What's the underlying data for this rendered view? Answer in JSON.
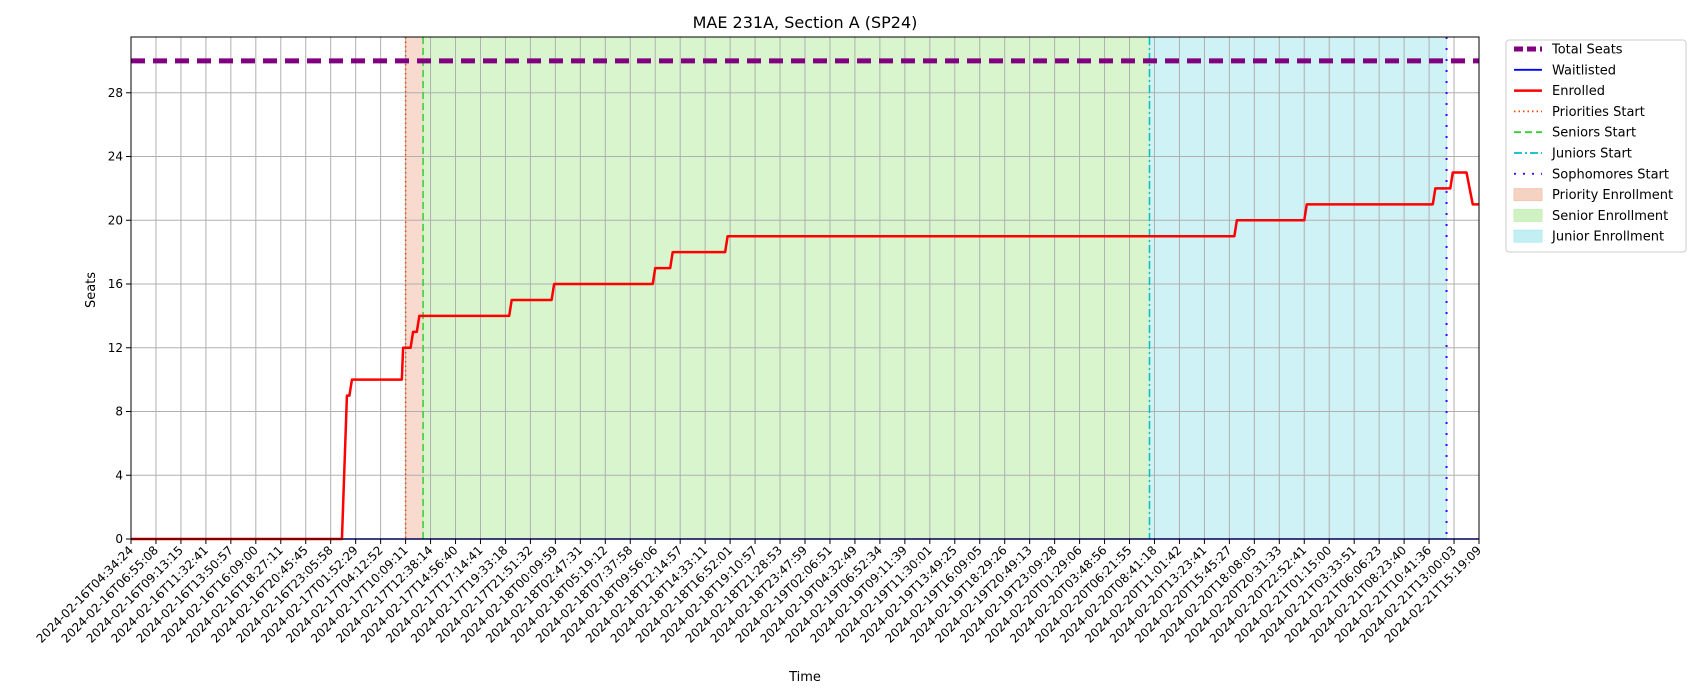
{
  "chart_data": {
    "type": "line",
    "title": "MAE 231A, Section A (SP24)",
    "xlabel": "Time",
    "ylabel": "Seats",
    "ylim": [
      0,
      31.5
    ],
    "yticks": [
      0,
      4,
      8,
      12,
      16,
      20,
      24,
      28
    ],
    "grid": true,
    "legend_position": "outside-top-right",
    "x_tick_labels": [
      "2024-02-16T04:34:24",
      "2024-02-16T06:55:08",
      "2024-02-16T09:13:15",
      "2024-02-16T11:32:41",
      "2024-02-16T13:50:57",
      "2024-02-16T16:09:00",
      "2024-02-16T18:27:11",
      "2024-02-16T20:45:45",
      "2024-02-16T23:05:58",
      "2024-02-17T01:52:29",
      "2024-02-17T04:12:52",
      "2024-02-17T10:09:11",
      "2024-02-17T12:38:14",
      "2024-02-17T14:56:40",
      "2024-02-17T17:14:41",
      "2024-02-17T19:33:18",
      "2024-02-17T21:51:32",
      "2024-02-18T00:09:59",
      "2024-02-18T02:47:31",
      "2024-02-18T05:19:12",
      "2024-02-18T07:37:58",
      "2024-02-18T09:56:06",
      "2024-02-18T12:14:57",
      "2024-02-18T14:33:11",
      "2024-02-18T16:52:01",
      "2024-02-18T19:10:57",
      "2024-02-18T21:28:53",
      "2024-02-18T23:47:59",
      "2024-02-19T02:06:51",
      "2024-02-19T04:32:49",
      "2024-02-19T06:52:34",
      "2024-02-19T09:11:39",
      "2024-02-19T11:30:01",
      "2024-02-19T13:49:25",
      "2024-02-19T16:09:05",
      "2024-02-19T18:29:26",
      "2024-02-19T20:49:13",
      "2024-02-19T23:09:28",
      "2024-02-20T01:29:06",
      "2024-02-20T03:48:56",
      "2024-02-20T06:21:55",
      "2024-02-20T08:41:18",
      "2024-02-20T11:01:42",
      "2024-02-20T13:23:41",
      "2024-02-20T15:45:27",
      "2024-02-20T18:08:05",
      "2024-02-20T20:31:33",
      "2024-02-20T22:52:41",
      "2024-02-21T01:15:00",
      "2024-02-21T03:33:51",
      "2024-02-21T06:06:23",
      "2024-02-21T08:23:40",
      "2024-02-21T10:41:36",
      "2024-02-21T13:00:03",
      "2024-02-21T15:19:09"
    ],
    "x_range": [
      0,
      54
    ],
    "series": [
      {
        "name": "Total Seats",
        "color": "#800080",
        "style": "dashed-thick",
        "x": [
          0,
          54
        ],
        "values": [
          30,
          30
        ]
      },
      {
        "name": "Waitlisted",
        "color": "#0000ff",
        "style": "solid-thin",
        "x": [
          0,
          54
        ],
        "values": [
          0,
          0
        ]
      },
      {
        "name": "Enrolled",
        "color": "#ff0000",
        "style": "solid",
        "x": [
          0,
          8.45,
          8.65,
          8.75,
          8.85,
          9.0,
          10.85,
          10.9,
          11.2,
          11.3,
          11.45,
          11.55,
          11.62,
          11.65,
          15.15,
          15.25,
          16.85,
          16.95,
          20.9,
          21.0,
          21.6,
          21.7,
          23.8,
          23.9,
          44.2,
          44.3,
          47.0,
          47.1,
          52.15,
          52.25,
          52.85,
          52.95,
          53.5,
          53.75,
          54
        ],
        "values": [
          0,
          0,
          9,
          9,
          10,
          10,
          10,
          12,
          12,
          13,
          13,
          14,
          14,
          14,
          14,
          15,
          15,
          16,
          16,
          17,
          17,
          18,
          18,
          19,
          19,
          20,
          20,
          21,
          21,
          22,
          22,
          23,
          23,
          21,
          21
        ]
      }
    ],
    "events": [
      {
        "name": "Priorities Start",
        "x": 11.0,
        "color": "#ff4500",
        "style": "dotted"
      },
      {
        "name": "Seniors Start",
        "x": 11.7,
        "color": "#32cd32",
        "style": "dashed"
      },
      {
        "name": "Juniors Start",
        "x": 40.8,
        "color": "#00bfc4",
        "style": "dashdot"
      },
      {
        "name": "Sophomores Start",
        "x": 52.7,
        "color": "#4b00ff",
        "style": "loosely-dotted"
      }
    ],
    "periods": [
      {
        "name": "Priority Enrollment",
        "from": 11.0,
        "to": 11.7,
        "color": "#f4c7b4"
      },
      {
        "name": "Senior Enrollment",
        "from": 11.7,
        "to": 40.8,
        "color": "#c4efb4"
      },
      {
        "name": "Junior Enrollment",
        "from": 40.8,
        "to": 52.7,
        "color": "#b4ebef"
      }
    ]
  }
}
